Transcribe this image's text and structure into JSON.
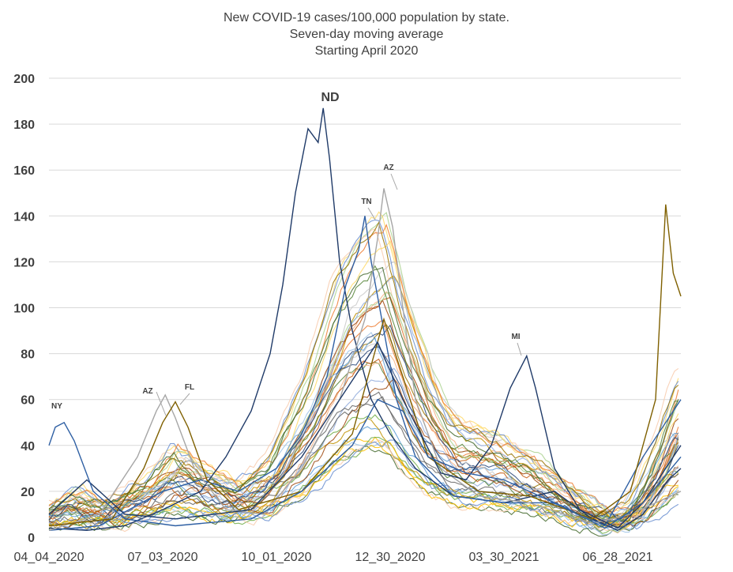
{
  "chart_data": {
    "type": "line",
    "title": [
      "New COVID-19 cases/100,000 population by state.",
      "Seven-day moving average",
      "Starting April 2020"
    ],
    "xlabel": "",
    "ylabel": "",
    "x_tick_labels": [
      "04_04_2020",
      "07_03_2020",
      "10_01_2020",
      "12_30_2020",
      "03_30_2021",
      "06_28_2021"
    ],
    "x_tick_days": [
      0,
      90,
      180,
      270,
      360,
      450
    ],
    "x_range_days": [
      0,
      500
    ],
    "ylim": [
      0,
      200
    ],
    "y_ticks": [
      0,
      20,
      40,
      60,
      80,
      100,
      120,
      140,
      160,
      180,
      200
    ],
    "grid": "horizontal",
    "legend": "none",
    "highlighted_series": [
      {
        "label": "ND",
        "color": "#1f3a68",
        "points": [
          [
            0,
            4
          ],
          [
            30,
            3
          ],
          [
            60,
            5
          ],
          [
            90,
            12
          ],
          [
            120,
            20
          ],
          [
            140,
            35
          ],
          [
            160,
            55
          ],
          [
            175,
            80
          ],
          [
            185,
            110
          ],
          [
            195,
            150
          ],
          [
            205,
            178
          ],
          [
            213,
            172
          ],
          [
            217,
            187
          ],
          [
            222,
            165
          ],
          [
            230,
            120
          ],
          [
            240,
            90
          ],
          [
            255,
            60
          ],
          [
            270,
            45
          ],
          [
            290,
            30
          ],
          [
            320,
            18
          ],
          [
            360,
            15
          ],
          [
            400,
            20
          ],
          [
            430,
            8
          ],
          [
            450,
            3
          ],
          [
            470,
            10
          ],
          [
            490,
            25
          ],
          [
            500,
            30
          ]
        ]
      },
      {
        "label": "TN",
        "color": "#2e5fa3",
        "points": [
          [
            0,
            3
          ],
          [
            40,
            5
          ],
          [
            90,
            20
          ],
          [
            120,
            25
          ],
          [
            150,
            20
          ],
          [
            180,
            30
          ],
          [
            200,
            45
          ],
          [
            220,
            70
          ],
          [
            235,
            110
          ],
          [
            245,
            125
          ],
          [
            250,
            140
          ],
          [
            255,
            120
          ],
          [
            265,
            90
          ],
          [
            275,
            60
          ],
          [
            290,
            35
          ],
          [
            320,
            18
          ],
          [
            360,
            15
          ],
          [
            400,
            15
          ],
          [
            440,
            5
          ],
          [
            470,
            35
          ],
          [
            500,
            60
          ]
        ]
      },
      {
        "label": "AZ",
        "color": "#a6a6a6",
        "points": [
          [
            0,
            3
          ],
          [
            40,
            10
          ],
          [
            70,
            35
          ],
          [
            85,
            55
          ],
          [
            92,
            62
          ],
          [
            100,
            52
          ],
          [
            115,
            30
          ],
          [
            140,
            12
          ],
          [
            170,
            10
          ],
          [
            200,
            30
          ],
          [
            230,
            60
          ],
          [
            250,
            95
          ],
          [
            260,
            130
          ],
          [
            265,
            152
          ],
          [
            272,
            135
          ],
          [
            280,
            100
          ],
          [
            290,
            60
          ],
          [
            310,
            30
          ],
          [
            340,
            18
          ],
          [
            380,
            15
          ],
          [
            430,
            6
          ],
          [
            460,
            10
          ],
          [
            500,
            20
          ]
        ]
      },
      {
        "label": "FL",
        "color": "#7f6000",
        "points": [
          [
            0,
            5
          ],
          [
            50,
            8
          ],
          [
            75,
            30
          ],
          [
            90,
            50
          ],
          [
            100,
            59
          ],
          [
            110,
            48
          ],
          [
            125,
            25
          ],
          [
            150,
            12
          ],
          [
            200,
            20
          ],
          [
            240,
            45
          ],
          [
            265,
            95
          ],
          [
            280,
            70
          ],
          [
            300,
            35
          ],
          [
            340,
            20
          ],
          [
            380,
            18
          ],
          [
            430,
            8
          ],
          [
            460,
            20
          ],
          [
            480,
            60
          ],
          [
            488,
            145
          ],
          [
            494,
            115
          ],
          [
            500,
            105
          ]
        ]
      },
      {
        "label": "MI",
        "color": "#1f3a68",
        "points": [
          [
            0,
            10
          ],
          [
            30,
            25
          ],
          [
            60,
            10
          ],
          [
            100,
            8
          ],
          [
            160,
            12
          ],
          [
            200,
            35
          ],
          [
            230,
            60
          ],
          [
            260,
            85
          ],
          [
            280,
            60
          ],
          [
            310,
            28
          ],
          [
            330,
            25
          ],
          [
            350,
            40
          ],
          [
            365,
            65
          ],
          [
            378,
            79
          ],
          [
            385,
            65
          ],
          [
            400,
            30
          ],
          [
            420,
            12
          ],
          [
            450,
            4
          ],
          [
            470,
            15
          ],
          [
            500,
            40
          ]
        ]
      },
      {
        "label": "NY",
        "color": "#2e5fa3",
        "points": [
          [
            0,
            40
          ],
          [
            5,
            48
          ],
          [
            12,
            50
          ],
          [
            20,
            42
          ],
          [
            35,
            20
          ],
          [
            60,
            8
          ],
          [
            100,
            5
          ],
          [
            160,
            8
          ],
          [
            200,
            20
          ],
          [
            240,
            40
          ],
          [
            260,
            60
          ],
          [
            280,
            55
          ],
          [
            300,
            35
          ],
          [
            330,
            28
          ],
          [
            360,
            25
          ],
          [
            400,
            15
          ],
          [
            440,
            4
          ],
          [
            470,
            15
          ],
          [
            500,
            35
          ]
        ]
      }
    ],
    "annotations": [
      "NY",
      "AZ",
      "FL",
      "ND",
      "TN",
      "AZ",
      "MI"
    ]
  }
}
